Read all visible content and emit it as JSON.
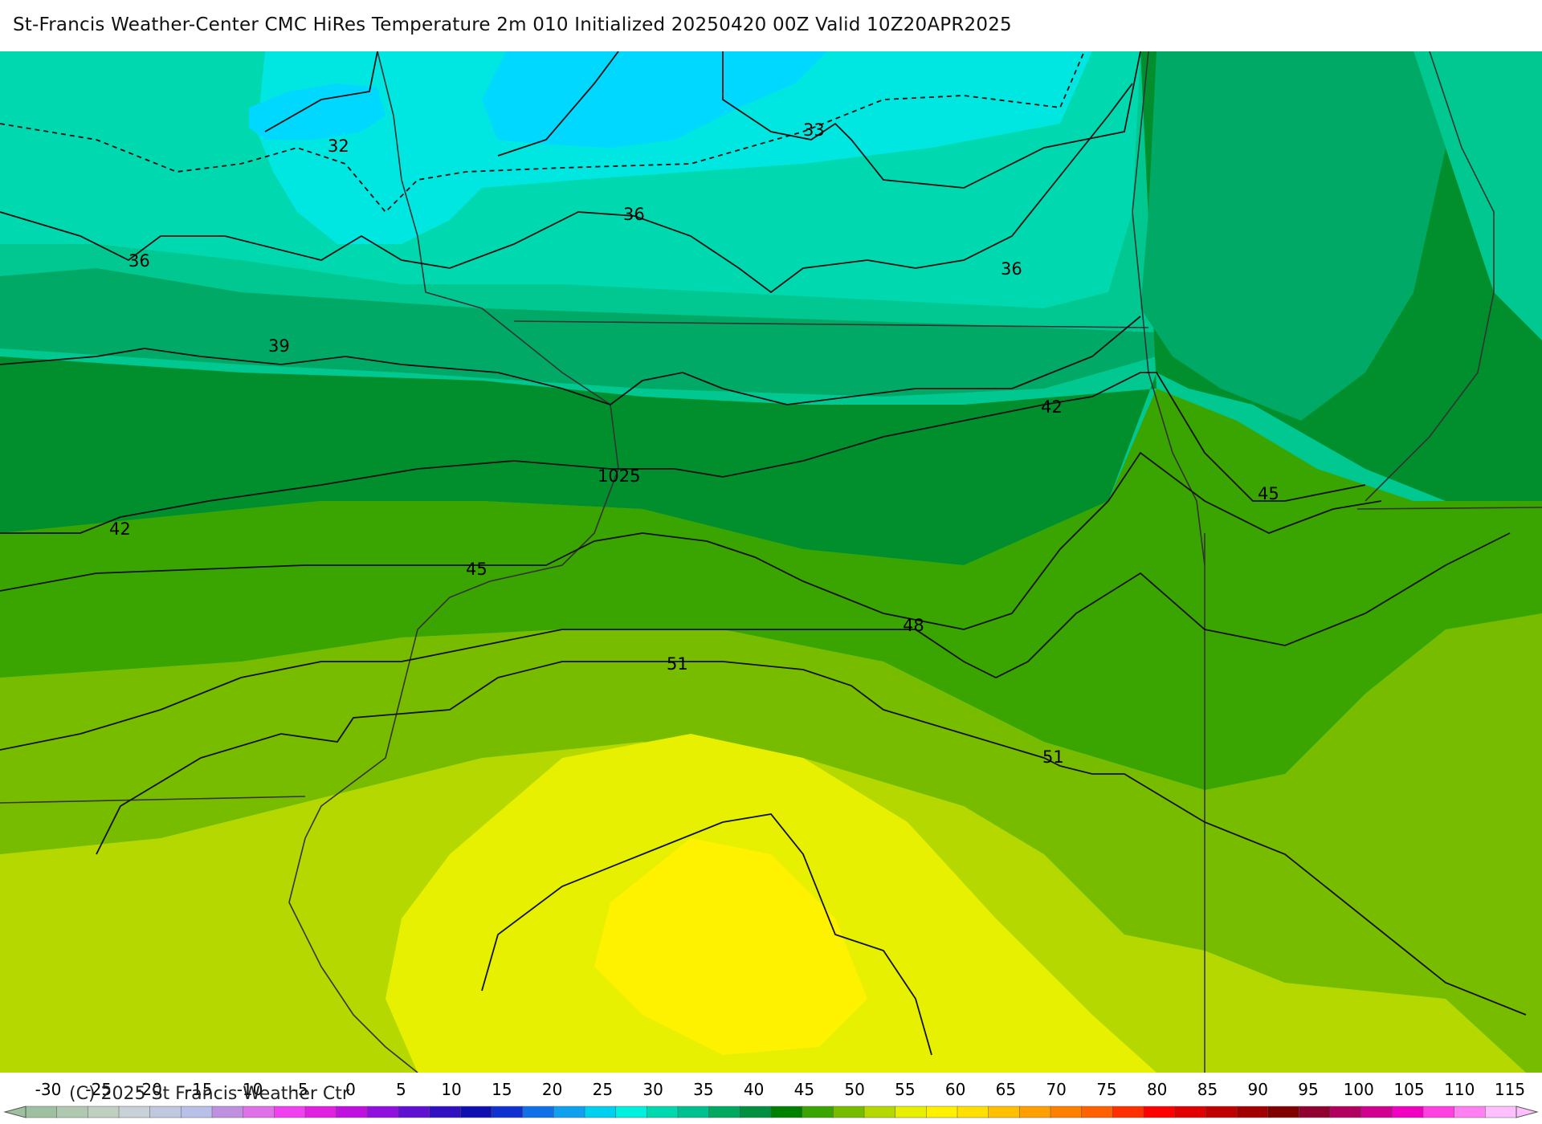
{
  "title": "St-Francis Weather-Center CMC HiRes Temperature 2m  010 Initialized 20250420 00Z Valid 10Z20APR2025",
  "copyright": "(C) 2025 St Francis Weather Ctr",
  "colors": {
    "t30": "#00e6e0",
    "t33": "#00d8b0",
    "t36": "#00c890",
    "t39": "#00aa66",
    "t42": "#008f2c",
    "t45": "#3aa400",
    "t48": "#78bc00",
    "t51": "#b4d800",
    "t54": "#e6f000",
    "t57": "#fff200",
    "cold": "#00d8ff",
    "contour": "#111111",
    "boundary": "#333333"
  },
  "contour_labels": [
    "32",
    "33",
    "36",
    "36",
    "36",
    "39",
    "42",
    "42",
    "45",
    "45",
    "48",
    "51",
    "51",
    "1025"
  ],
  "legend": {
    "ticks": [
      "-30",
      "-25",
      "-20",
      "-15",
      "-10",
      "-5",
      "0",
      "5",
      "10",
      "15",
      "20",
      "25",
      "30",
      "35",
      "40",
      "45",
      "50",
      "55",
      "60",
      "65",
      "70",
      "75",
      "80",
      "85",
      "90",
      "95",
      "100",
      "105",
      "110",
      "115"
    ],
    "colors": [
      "#9fc0a0",
      "#b0c8b0",
      "#c0d0c0",
      "#c8d0d8",
      "#c0c8e0",
      "#b8c0e8",
      "#c090e0",
      "#e070e8",
      "#f040f0",
      "#e020e0",
      "#c010e0",
      "#9010e0",
      "#6010d0",
      "#3010c0",
      "#1010b0",
      "#1030d0",
      "#1070e8",
      "#10a0f0",
      "#00d0f0",
      "#00f0e0",
      "#00d8b0",
      "#00c090",
      "#00a860",
      "#009040",
      "#008000",
      "#3aa400",
      "#78bc00",
      "#b4d800",
      "#e6f000",
      "#fff200",
      "#ffe000",
      "#ffc000",
      "#ffa000",
      "#ff8000",
      "#ff6000",
      "#ff3000",
      "#ff0000",
      "#e00000",
      "#c00000",
      "#a00000",
      "#800000",
      "#900030",
      "#b00060",
      "#d00090",
      "#f000c0",
      "#ff40e0",
      "#ff80f0",
      "#ffc0ff"
    ]
  }
}
